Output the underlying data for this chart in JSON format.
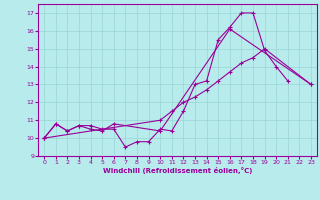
{
  "xlabel": "Windchill (Refroidissement éolien,°C)",
  "xlim": [
    -0.5,
    23.5
  ],
  "ylim": [
    9,
    17.5
  ],
  "yticks": [
    9,
    10,
    11,
    12,
    13,
    14,
    15,
    16,
    17
  ],
  "xticks": [
    0,
    1,
    2,
    3,
    4,
    5,
    6,
    7,
    8,
    9,
    10,
    11,
    12,
    13,
    14,
    15,
    16,
    17,
    18,
    19,
    20,
    21,
    22,
    23
  ],
  "bg_color": "#b8ecec",
  "grid_color": "#98d4d4",
  "line_color": "#990099",
  "s1_x": [
    0,
    1,
    2,
    3,
    4,
    5,
    6,
    7,
    8,
    9,
    10,
    11,
    12,
    13,
    14,
    15,
    16,
    17,
    18,
    19,
    20,
    21
  ],
  "s1_y": [
    10.0,
    10.8,
    10.4,
    10.7,
    10.7,
    10.5,
    10.5,
    9.5,
    9.8,
    9.8,
    10.5,
    10.4,
    11.5,
    13.0,
    13.2,
    15.5,
    16.2,
    17.0,
    17.0,
    14.9,
    14.0,
    13.2
  ],
  "s2_x": [
    0,
    1,
    2,
    3,
    4,
    5,
    6,
    10,
    16,
    23
  ],
  "s2_y": [
    10.0,
    10.8,
    10.4,
    10.7,
    10.5,
    10.4,
    10.8,
    10.4,
    16.1,
    13.0
  ],
  "s3_x": [
    0,
    10,
    11,
    12,
    13,
    14,
    15,
    16,
    17,
    18,
    19,
    23
  ],
  "s3_y": [
    10.0,
    11.0,
    11.5,
    12.0,
    12.3,
    12.7,
    13.2,
    13.7,
    14.2,
    14.5,
    15.0,
    13.0
  ]
}
